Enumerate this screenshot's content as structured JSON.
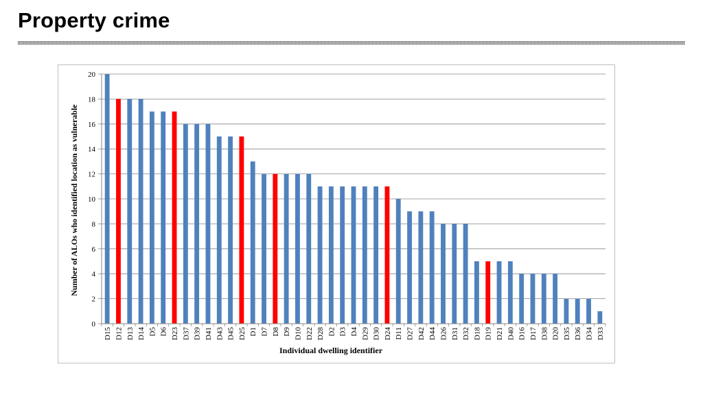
{
  "slide": {
    "title": "Property crime"
  },
  "colors": {
    "bar_default": "#4f81bd",
    "bar_highlight": "#ff0000",
    "gridline": "#868686",
    "axis": "#868686"
  },
  "chart_data": {
    "type": "bar",
    "title": "",
    "xlabel": "Individual dwelling identifier",
    "ylabel": "Number of ALOs who identified location as vulnerable",
    "ylim": [
      0,
      20
    ],
    "yticks": [
      0,
      2,
      4,
      6,
      8,
      10,
      12,
      14,
      16,
      18,
      20
    ],
    "grid": true,
    "legend": "none",
    "categories": [
      "D15",
      "D12",
      "D13",
      "D14",
      "D5",
      "D6",
      "D23",
      "D37",
      "D39",
      "D41",
      "D43",
      "D45",
      "D25",
      "D1",
      "D7",
      "D8",
      "D9",
      "D10",
      "D22",
      "D28",
      "D2",
      "D3",
      "D4",
      "D29",
      "D30",
      "D24",
      "D11",
      "D27",
      "D42",
      "D44",
      "D26",
      "D31",
      "D32",
      "D18",
      "D19",
      "D21",
      "D40",
      "D16",
      "D17",
      "D38",
      "D20",
      "D35",
      "D36",
      "D34",
      "D33"
    ],
    "values": [
      20,
      18,
      18,
      18,
      17,
      17,
      17,
      16,
      16,
      16,
      15,
      15,
      15,
      13,
      12,
      12,
      12,
      12,
      12,
      11,
      11,
      11,
      11,
      11,
      11,
      11,
      10,
      9,
      9,
      9,
      8,
      8,
      8,
      5,
      5,
      5,
      5,
      4,
      4,
      4,
      4,
      2,
      2,
      2,
      1
    ],
    "highlighted": [
      "D12",
      "D23",
      "D25",
      "D8",
      "D24",
      "D19"
    ]
  }
}
